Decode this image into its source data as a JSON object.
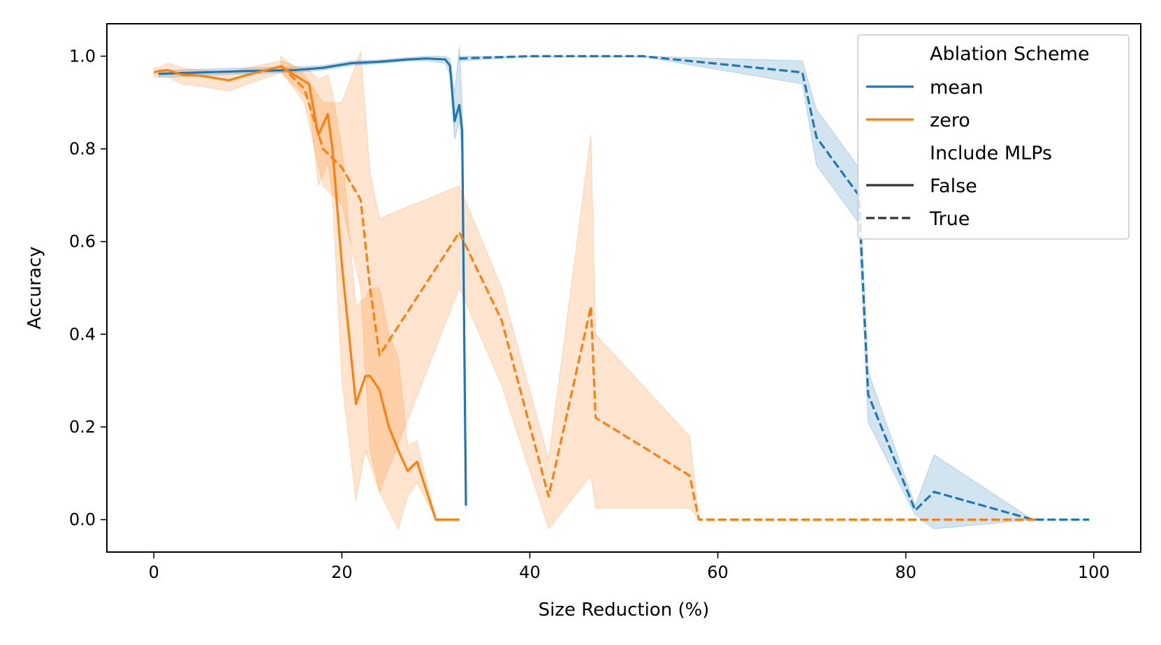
{
  "chart_data": {
    "type": "line",
    "title": "",
    "xlabel": "Size Reduction (%)",
    "ylabel": "Accuracy",
    "xlim": [
      -5,
      105
    ],
    "ylim": [
      -0.07,
      1.07
    ],
    "xticks": [
      0,
      20,
      40,
      60,
      80,
      100
    ],
    "yticks": [
      0.0,
      0.2,
      0.4,
      0.6,
      0.8,
      1.0
    ],
    "xtick_labels": [
      "0",
      "20",
      "40",
      "60",
      "80",
      "100"
    ],
    "ytick_labels": [
      "0.0",
      "0.2",
      "0.4",
      "0.6",
      "0.8",
      "1.0"
    ],
    "grid": false,
    "legend": {
      "placement": "top-right",
      "hue_title": "Ablation Scheme",
      "style_title": "Include MLPs",
      "hue_entries": [
        {
          "label": "mean",
          "color": "#1f77b4"
        },
        {
          "label": "zero",
          "color": "#ff7f0e"
        }
      ],
      "style_entries": [
        {
          "label": "False",
          "dash": "solid"
        },
        {
          "label": "True",
          "dash": "dashed"
        }
      ]
    },
    "series": [
      {
        "scheme": "mean",
        "mlps": "False",
        "color": "#1f77b4",
        "dash": "solid",
        "x": [
          0.5,
          2,
          5,
          10,
          15,
          18,
          21,
          24,
          27,
          29,
          31,
          31.5,
          32,
          32.5,
          32.8,
          33.2
        ],
        "y": [
          0.962,
          0.963,
          0.965,
          0.968,
          0.97,
          0.975,
          0.985,
          0.988,
          0.993,
          0.995,
          0.993,
          0.98,
          0.86,
          0.895,
          0.84,
          0.03
        ],
        "lower": [
          0.955,
          0.955,
          0.958,
          0.962,
          0.965,
          0.97,
          0.98,
          0.984,
          0.99,
          0.99,
          0.985,
          0.96,
          0.82,
          0.86,
          0.78,
          0.02
        ],
        "upper": [
          0.97,
          0.97,
          0.972,
          0.975,
          0.977,
          0.98,
          0.99,
          0.992,
          0.997,
          1.0,
          1.0,
          0.995,
          0.92,
          1.02,
          0.9,
          0.04
        ]
      },
      {
        "scheme": "mean",
        "mlps": "True",
        "color": "#1f77b4",
        "dash": "dashed",
        "x": [
          32.5,
          40,
          52,
          69,
          70.5,
          75,
          76,
          81,
          83,
          93.5,
          99.5
        ],
        "y": [
          0.995,
          1.0,
          1.0,
          0.965,
          0.825,
          0.7,
          0.27,
          0.02,
          0.06,
          0.0,
          0.0
        ],
        "lower": [
          0.99,
          0.999,
          0.999,
          0.94,
          0.765,
          0.64,
          0.21,
          0.01,
          -0.02,
          0.0,
          0.0
        ],
        "upper": [
          1.0,
          1.0,
          1.0,
          0.99,
          0.885,
          0.76,
          0.32,
          0.03,
          0.14,
          0.0,
          0.0
        ]
      },
      {
        "scheme": "zero",
        "mlps": "False",
        "color": "#ff7f0e",
        "dash": "solid",
        "x": [
          0,
          0.5,
          1.5,
          3,
          5,
          8,
          10,
          13.5,
          16.5,
          17.5,
          18.5,
          19,
          20,
          21.5,
          22.5,
          23,
          24,
          25,
          26,
          27,
          28,
          30,
          32.5
        ],
        "y": [
          0.965,
          0.968,
          0.97,
          0.96,
          0.958,
          0.948,
          0.96,
          0.978,
          0.94,
          0.83,
          0.875,
          0.8,
          0.55,
          0.25,
          0.31,
          0.31,
          0.28,
          0.2,
          0.15,
          0.105,
          0.125,
          0.0,
          0.0
        ],
        "lower": [
          0.955,
          0.955,
          0.955,
          0.94,
          0.935,
          0.925,
          0.94,
          0.965,
          0.905,
          0.72,
          0.77,
          0.7,
          0.3,
          0.04,
          0.15,
          0.12,
          0.06,
          0.02,
          -0.02,
          0.05,
          0.08,
          0.0,
          0.0
        ],
        "upper": [
          0.975,
          0.975,
          0.985,
          0.975,
          0.97,
          0.965,
          0.975,
          0.99,
          0.97,
          0.95,
          0.96,
          0.92,
          0.8,
          0.46,
          0.48,
          0.5,
          0.5,
          0.4,
          0.35,
          0.16,
          0.17,
          0.0,
          0.0
        ]
      },
      {
        "scheme": "zero",
        "mlps": "True",
        "color": "#ff7f0e",
        "dash": "dashed",
        "x": [
          13.5,
          16,
          18,
          20,
          22,
          23,
          24,
          32.5,
          37,
          42,
          46.5,
          47,
          57,
          58,
          94
        ],
        "y": [
          0.98,
          0.93,
          0.8,
          0.76,
          0.69,
          0.5,
          0.355,
          0.62,
          0.43,
          0.05,
          0.46,
          0.22,
          0.095,
          0.0,
          0.0
        ],
        "lower": [
          0.97,
          0.9,
          0.72,
          0.68,
          0.5,
          0.15,
          0.06,
          0.5,
          0.29,
          -0.02,
          0.095,
          0.025,
          0.025,
          0.0,
          0.0
        ],
        "upper": [
          1.0,
          0.96,
          0.9,
          0.9,
          1.01,
          0.75,
          0.65,
          0.72,
          0.5,
          0.13,
          0.83,
          0.4,
          0.18,
          0.0,
          0.0
        ]
      }
    ]
  }
}
